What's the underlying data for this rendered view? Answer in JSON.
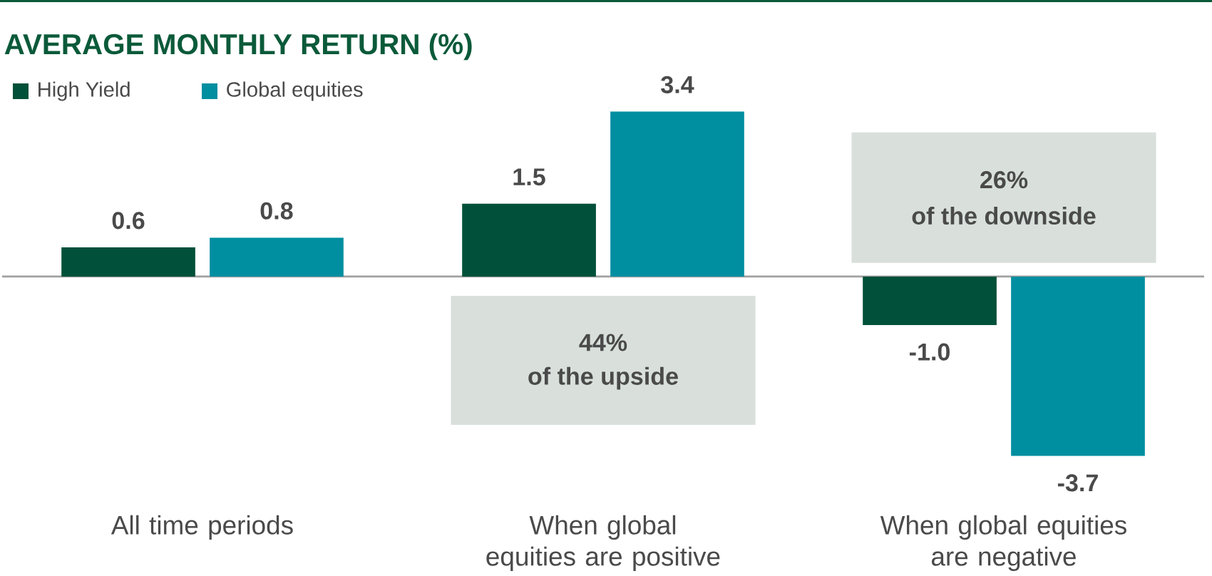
{
  "chart_data": {
    "type": "bar",
    "title": "AVERAGE MONTHLY RETURN (%)",
    "categories": [
      "All time periods",
      "When global equities are positive",
      "When global equities are negative"
    ],
    "series": [
      {
        "name": "High Yield",
        "color": "#00503a",
        "values": [
          0.6,
          1.5,
          -1.0
        ],
        "value_labels": [
          "0.6",
          "1.5",
          "-1.0"
        ]
      },
      {
        "name": "Global equities",
        "color": "#008fa1",
        "values": [
          0.8,
          3.4,
          -3.7
        ],
        "value_labels": [
          "0.8",
          "3.4",
          "-3.7"
        ]
      }
    ],
    "legend": "top left",
    "annotations": [
      "44%",
      "of the upside",
      "26%",
      "of the downside"
    ]
  }
}
